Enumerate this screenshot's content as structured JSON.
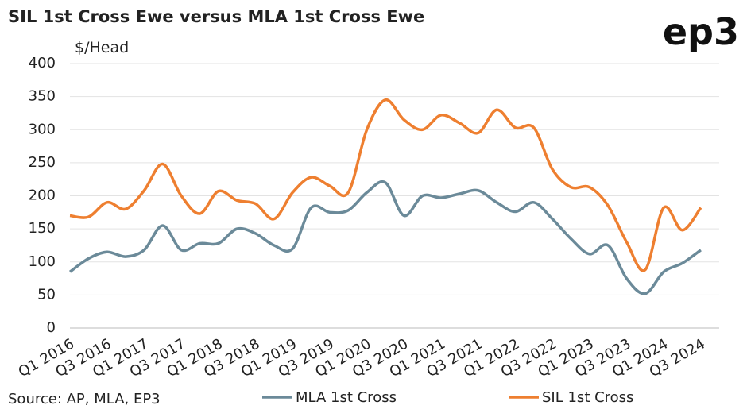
{
  "chart_data": {
    "type": "line",
    "title": "SIL 1st Cross Ewe versus MLA 1st Cross Ewe",
    "brand": "ep3",
    "y_label": "$/Head",
    "source": "Source: AP, MLA, EP3",
    "categories": [
      "Q1 2016",
      null,
      "Q3 2016",
      null,
      "Q1 2017",
      null,
      "Q3 2017",
      null,
      "Q1 2018",
      null,
      "Q3 2018",
      null,
      "Q1 2019",
      null,
      "Q3 2019",
      null,
      "Q1 2020",
      null,
      "Q3 2020",
      null,
      "Q1 2021",
      null,
      "Q3 2021",
      null,
      "Q1 2022",
      null,
      "Q3 2022",
      null,
      "Q1 2023",
      null,
      "Q3 2023",
      null,
      "Q1 2024",
      null,
      "Q3 2024"
    ],
    "series": [
      {
        "name": "MLA 1st Cross",
        "color": "#6b8a99",
        "values": [
          85,
          105,
          115,
          108,
          118,
          155,
          118,
          128,
          128,
          150,
          143,
          125,
          120,
          182,
          175,
          178,
          205,
          220,
          170,
          200,
          197,
          203,
          208,
          190,
          176,
          190,
          165,
          135,
          112,
          125,
          75,
          52,
          85,
          98,
          118
        ]
      },
      {
        "name": "SIL 1st Cross",
        "color": "#ee7f30",
        "values": [
          170,
          168,
          190,
          180,
          208,
          248,
          200,
          173,
          207,
          193,
          188,
          165,
          205,
          228,
          215,
          205,
          300,
          345,
          315,
          300,
          322,
          310,
          295,
          330,
          303,
          303,
          240,
          213,
          213,
          185,
          130,
          88,
          182,
          148,
          182
        ]
      }
    ],
    "ylim": [
      0,
      400
    ],
    "yticks": [
      0,
      50,
      100,
      150,
      200,
      250,
      300,
      350,
      400
    ],
    "grid": true
  }
}
